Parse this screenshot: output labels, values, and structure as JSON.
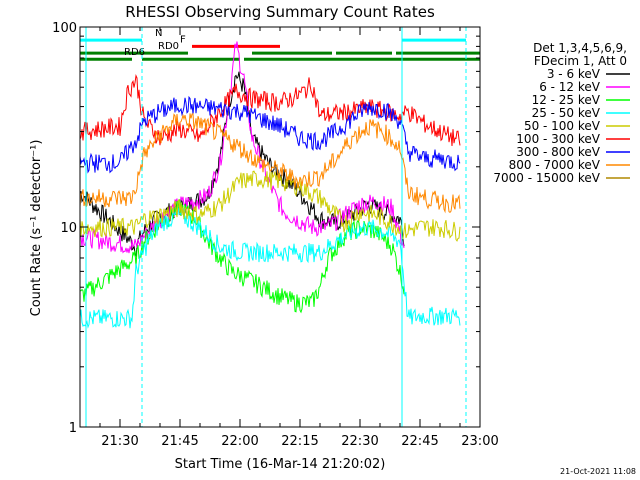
{
  "chart_data": {
    "type": "line",
    "title": "RHESSI Observing Summary Count Rates",
    "xlabel": "Start Time (16-Mar-14 21:20:02)",
    "ylabel": "Count Rate (s⁻¹ detector⁻¹)",
    "x_unit": "minutes after 21:20:02",
    "xlim": [
      0,
      100
    ],
    "ylim": [
      1,
      100
    ],
    "yscale": "log",
    "grid": false,
    "x_ticks": [
      {
        "x": 10,
        "label": "21:30"
      },
      {
        "x": 25,
        "label": "21:45"
      },
      {
        "x": 40,
        "label": "22:00"
      },
      {
        "x": 55,
        "label": "22:15"
      },
      {
        "x": 70,
        "label": "22:30"
      },
      {
        "x": 85,
        "label": "22:45"
      },
      {
        "x": 100,
        "label": "23:00"
      }
    ],
    "y_ticks": [
      {
        "y": 1,
        "label": "1"
      },
      {
        "y": 10,
        "label": "10"
      },
      {
        "y": 100,
        "label": "100"
      }
    ],
    "legend": {
      "placement": "right",
      "header": [
        "Det 1,3,4,5,6,9,",
        "FDecim 1, Att 0"
      ]
    },
    "series": [
      {
        "name": "3 - 6 keV",
        "color": "#000000",
        "x": [
          0,
          14,
          16,
          20,
          25,
          29,
          32,
          35,
          37,
          39,
          41,
          43,
          45,
          47,
          49,
          52,
          56,
          60,
          64,
          68,
          72,
          76,
          80,
          81
        ],
        "y": [
          15,
          8,
          9.5,
          11.5,
          12.5,
          13.5,
          14.5,
          22,
          40,
          58,
          50,
          28,
          24,
          21,
          19,
          17,
          14,
          11,
          10.5,
          11.5,
          13,
          12,
          11,
          9
        ]
      },
      {
        "name": "6 - 12 keV",
        "color": "#ff00ff",
        "x": [
          0,
          14,
          16,
          20,
          25,
          29,
          32,
          35,
          37,
          39,
          41,
          43,
          45,
          47,
          49,
          51,
          54,
          58,
          62,
          66,
          70,
          74,
          78,
          81
        ],
        "y": [
          9,
          8,
          9,
          11,
          13,
          13.5,
          14.5,
          21,
          40,
          82,
          55,
          28,
          22,
          17,
          14,
          12,
          11,
          10,
          10,
          11.5,
          13,
          13.5,
          12.5,
          8
        ]
      },
      {
        "name": "12 - 25 keV",
        "color": "#00ff00",
        "x": [
          0,
          14,
          16,
          20,
          25,
          29,
          32,
          35,
          38,
          42,
          46,
          50,
          54,
          58,
          60,
          62,
          66,
          70,
          74,
          78,
          80,
          81
        ],
        "y": [
          4.5,
          7,
          8.5,
          10.5,
          12.5,
          11,
          8.5,
          7,
          6,
          5.5,
          5,
          4.5,
          4.2,
          4.2,
          5,
          7,
          9,
          10,
          9.5,
          8,
          6,
          5
        ]
      },
      {
        "name": "25 - 50 keV",
        "color": "#00ffff",
        "x": [
          0,
          5,
          10,
          13,
          14,
          17,
          20,
          25,
          30,
          35,
          40,
          45,
          50,
          55,
          60,
          64,
          68,
          72,
          76,
          80,
          82,
          85,
          88,
          95
        ],
        "y": [
          3.5,
          3.5,
          3.5,
          3.5,
          6,
          8.5,
          10.5,
          11.5,
          10,
          8,
          7.5,
          7.5,
          7.5,
          7.5,
          7.5,
          8.5,
          9.5,
          10,
          9.5,
          8.5,
          3.5,
          3.6,
          3.6,
          3.6
        ]
      },
      {
        "name": "50 - 100 keV",
        "color": "#cccc00",
        "x": [
          0,
          14,
          16,
          20,
          25,
          30,
          35,
          40,
          45,
          50,
          55,
          60,
          63,
          66,
          70,
          74,
          78,
          81,
          85,
          90,
          95
        ],
        "y": [
          10,
          10,
          11,
          11.5,
          12.5,
          11.5,
          13,
          17,
          17.5,
          17,
          16,
          14,
          12,
          10.5,
          12,
          11.5,
          10.5,
          9.5,
          10,
          10,
          9.5
        ]
      },
      {
        "name": "100 - 300 keV",
        "color": "#ff0000",
        "x": [
          0,
          10,
          12,
          14,
          16,
          20,
          25,
          30,
          35,
          39,
          43,
          46,
          50,
          55,
          58,
          60,
          64,
          68,
          72,
          76,
          80,
          82,
          86,
          90,
          95
        ],
        "y": [
          30,
          32,
          48,
          55,
          34,
          28,
          31,
          28,
          38,
          48,
          44,
          43,
          42,
          46,
          52,
          36,
          37,
          38,
          40,
          38,
          36,
          38,
          33,
          30,
          27
        ]
      },
      {
        "name": "300 - 800 keV",
        "color": "#0000ff",
        "x": [
          0,
          10,
          12,
          14,
          16,
          20,
          25,
          30,
          35,
          40,
          45,
          50,
          55,
          60,
          64,
          68,
          72,
          76,
          80,
          82,
          86,
          90,
          95
        ],
        "y": [
          21,
          21,
          24,
          27,
          34,
          38,
          41,
          40,
          39,
          38,
          35,
          32,
          28,
          27,
          30,
          35,
          40,
          39,
          34,
          24,
          22,
          22,
          21
        ]
      },
      {
        "name": "800 - 7000 keV",
        "color": "#ff8800",
        "x": [
          0,
          13,
          14,
          16,
          20,
          25,
          30,
          35,
          40,
          45,
          50,
          55,
          60,
          64,
          68,
          72,
          76,
          80,
          82,
          86,
          90,
          95
        ],
        "y": [
          14,
          14,
          16,
          23,
          29,
          35,
          33,
          29,
          25,
          21,
          19,
          17,
          18,
          22,
          28,
          32,
          30,
          25,
          15,
          14,
          13.5,
          13
        ]
      },
      {
        "name": "7000 - 15000 keV",
        "color": "#b08800",
        "x": [
          0,
          80,
          81.5,
          81.5,
          83,
          100
        ],
        "y": [
          1,
          1,
          1,
          1,
          1,
          1
        ]
      }
    ],
    "dashed_lines": [
      {
        "x": 15.5,
        "color": "#00ffff"
      },
      {
        "x": 96.5,
        "color": "#00ffff"
      }
    ],
    "solid_lines": [
      {
        "x": 1.5,
        "color": "#00ffff"
      },
      {
        "x": 80.5,
        "color": "#00ffff"
      }
    ],
    "flag_bars": [
      {
        "label": "N",
        "color": "#00ffff",
        "y": 86,
        "segments": [
          [
            0,
            15.5
          ],
          [
            80.5,
            96.5
          ]
        ]
      },
      {
        "label": "F",
        "color": "#ff0000",
        "y": 80,
        "segments": [
          [
            28,
            50
          ]
        ]
      },
      {
        "label": "RD0",
        "color": "#008000",
        "y": 74,
        "segments": [
          [
            0,
            27
          ],
          [
            43,
            63
          ],
          [
            64,
            78
          ],
          [
            79,
            100
          ]
        ]
      },
      {
        "label": "RD6",
        "color": "#008000",
        "y": 69,
        "segments": [
          [
            0,
            13
          ],
          [
            15.5,
            40
          ],
          [
            41,
            62
          ],
          [
            62,
            80
          ],
          [
            80,
            100
          ]
        ]
      }
    ],
    "footer": "21-Oct-2021 11:08"
  }
}
